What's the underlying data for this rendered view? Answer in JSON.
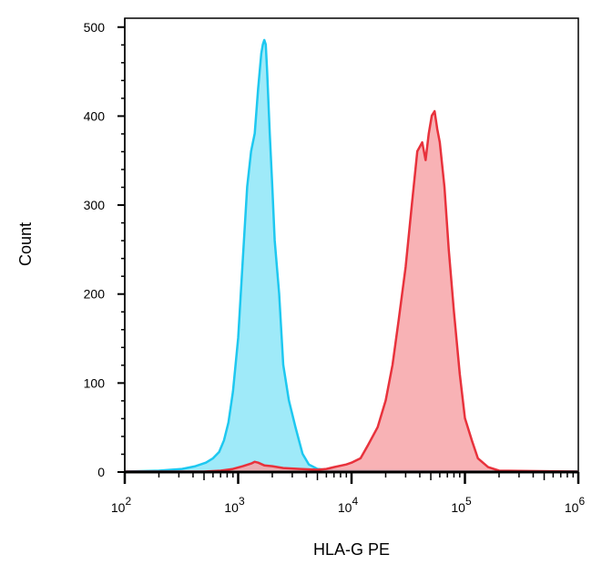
{
  "chart_data": {
    "type": "area",
    "xlabel": "HLA-G PE",
    "ylabel": "Count",
    "x_scale": "log",
    "xlim": [
      100,
      1000000
    ],
    "ylim": [
      0,
      510
    ],
    "grid": false,
    "x_tick_labels": [
      {
        "base": "10",
        "exp": "2",
        "value": 100
      },
      {
        "base": "10",
        "exp": "3",
        "value": 1000
      },
      {
        "base": "10",
        "exp": "4",
        "value": 10000
      },
      {
        "base": "10",
        "exp": "5",
        "value": 100000
      },
      {
        "base": "10",
        "exp": "6",
        "value": 1000000
      }
    ],
    "y_ticks": [
      "0",
      "100",
      "200",
      "300",
      "400",
      "500"
    ],
    "series": [
      {
        "color": "#1ec8f0",
        "fill": "#8ee6f8",
        "points": [
          [
            100,
            0
          ],
          [
            200,
            1
          ],
          [
            320,
            3
          ],
          [
            420,
            6
          ],
          [
            520,
            10
          ],
          [
            600,
            15
          ],
          [
            680,
            22
          ],
          [
            750,
            35
          ],
          [
            820,
            55
          ],
          [
            900,
            90
          ],
          [
            1000,
            150
          ],
          [
            1100,
            240
          ],
          [
            1200,
            320
          ],
          [
            1300,
            360
          ],
          [
            1400,
            380
          ],
          [
            1500,
            430
          ],
          [
            1600,
            470
          ],
          [
            1650,
            480
          ],
          [
            1700,
            485
          ],
          [
            1750,
            480
          ],
          [
            1800,
            450
          ],
          [
            1900,
            380
          ],
          [
            2000,
            320
          ],
          [
            2100,
            260
          ],
          [
            2300,
            200
          ],
          [
            2500,
            120
          ],
          [
            2800,
            80
          ],
          [
            3200,
            50
          ],
          [
            3700,
            20
          ],
          [
            4200,
            8
          ],
          [
            5000,
            3
          ],
          [
            7000,
            1
          ],
          [
            1000000,
            0
          ]
        ]
      },
      {
        "color": "#e8323c",
        "fill": "#f7a4a8",
        "points": [
          [
            100,
            0
          ],
          [
            300,
            0
          ],
          [
            500,
            0
          ],
          [
            700,
            1
          ],
          [
            900,
            3
          ],
          [
            1100,
            6
          ],
          [
            1300,
            9
          ],
          [
            1400,
            11
          ],
          [
            1500,
            10
          ],
          [
            1700,
            7
          ],
          [
            2000,
            6
          ],
          [
            2500,
            4
          ],
          [
            3500,
            3
          ],
          [
            5000,
            2
          ],
          [
            6000,
            3
          ],
          [
            7000,
            5
          ],
          [
            9000,
            8
          ],
          [
            10000,
            10
          ],
          [
            12000,
            15
          ],
          [
            14000,
            30
          ],
          [
            17000,
            50
          ],
          [
            20000,
            80
          ],
          [
            23000,
            120
          ],
          [
            26000,
            170
          ],
          [
            30000,
            230
          ],
          [
            34000,
            300
          ],
          [
            38000,
            360
          ],
          [
            42000,
            370
          ],
          [
            45000,
            350
          ],
          [
            48000,
            380
          ],
          [
            51000,
            400
          ],
          [
            54000,
            405
          ],
          [
            57000,
            385
          ],
          [
            60000,
            370
          ],
          [
            66000,
            320
          ],
          [
            72000,
            250
          ],
          [
            80000,
            180
          ],
          [
            90000,
            110
          ],
          [
            100000,
            60
          ],
          [
            115000,
            35
          ],
          [
            130000,
            15
          ],
          [
            160000,
            5
          ],
          [
            200000,
            1
          ],
          [
            1000000,
            0
          ]
        ]
      }
    ]
  }
}
